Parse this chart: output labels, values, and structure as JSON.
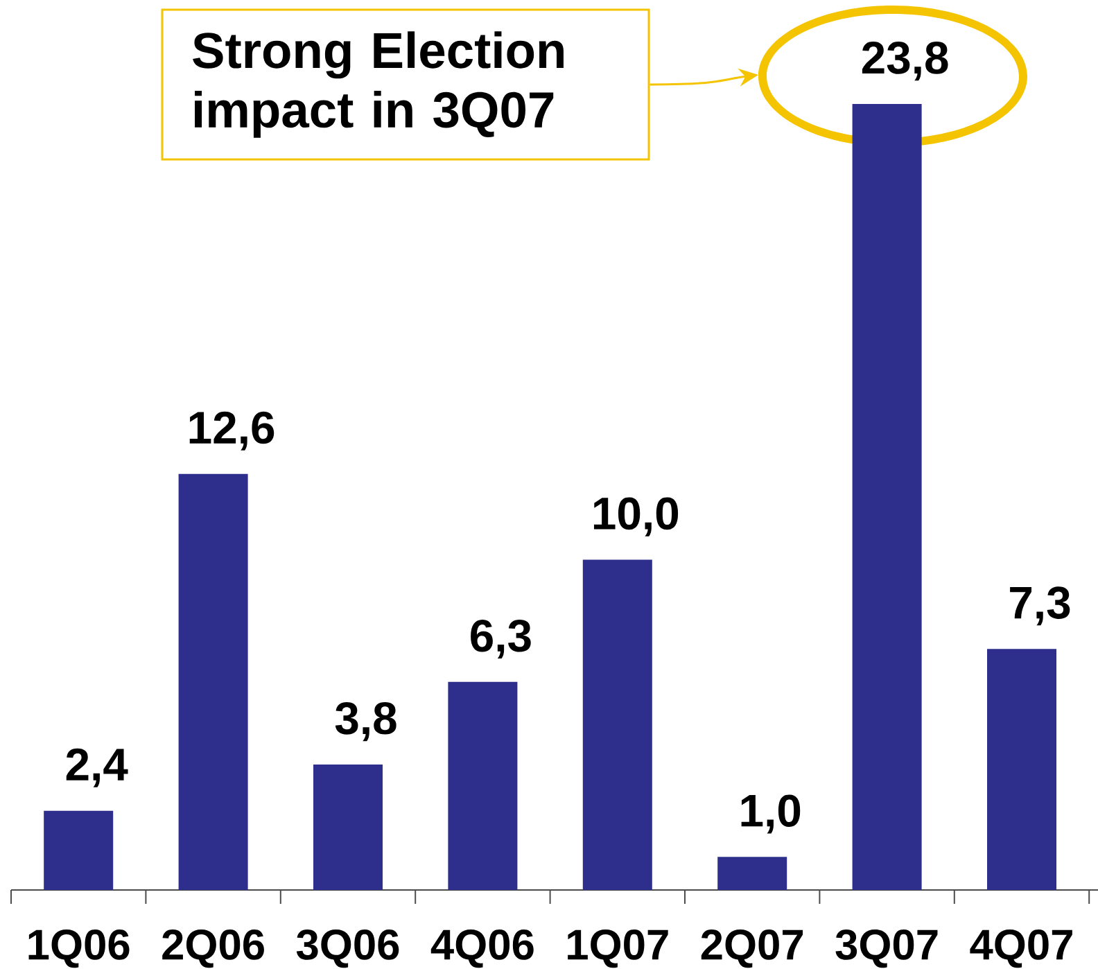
{
  "chart_data": {
    "type": "bar",
    "categories": [
      "1Q06",
      "2Q06",
      "3Q06",
      "4Q06",
      "1Q07",
      "2Q07",
      "3Q07",
      "4Q07"
    ],
    "values": [
      2.4,
      12.6,
      3.8,
      6.3,
      10.0,
      1.0,
      23.8,
      7.3
    ],
    "value_labels": [
      "2,4",
      "12,6",
      "3,8",
      "6,3",
      "10,0",
      "1,0",
      "23,8",
      "7,3"
    ],
    "color": "#2e2e8c",
    "tick_labels": "x",
    "annotations": [
      "Strong Election impact in 3Q07"
    ]
  }
}
